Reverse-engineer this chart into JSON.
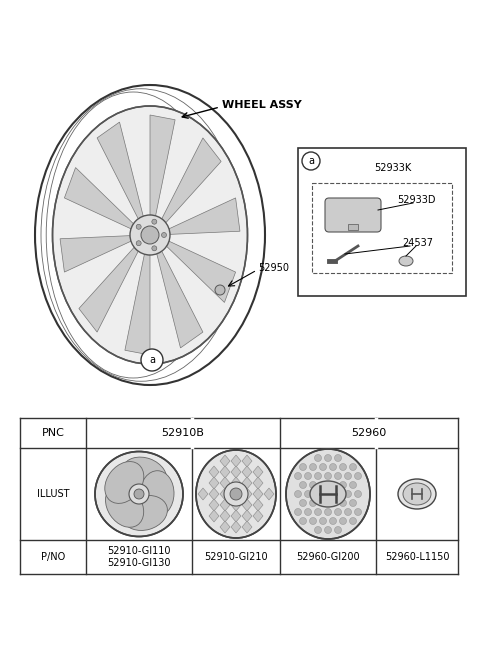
{
  "bg_color": "#ffffff",
  "diagram_title": "WHEEL ASSY",
  "part_label_52950": "52950",
  "box_52933K": "52933K",
  "box_52933D": "52933D",
  "box_24537": "24537",
  "pno_labels": [
    "52910-GI110\n52910-GI130",
    "52910-GI210",
    "52960-GI200",
    "52960-L1150"
  ],
  "table_border_color": "#333333",
  "text_color": "#000000"
}
